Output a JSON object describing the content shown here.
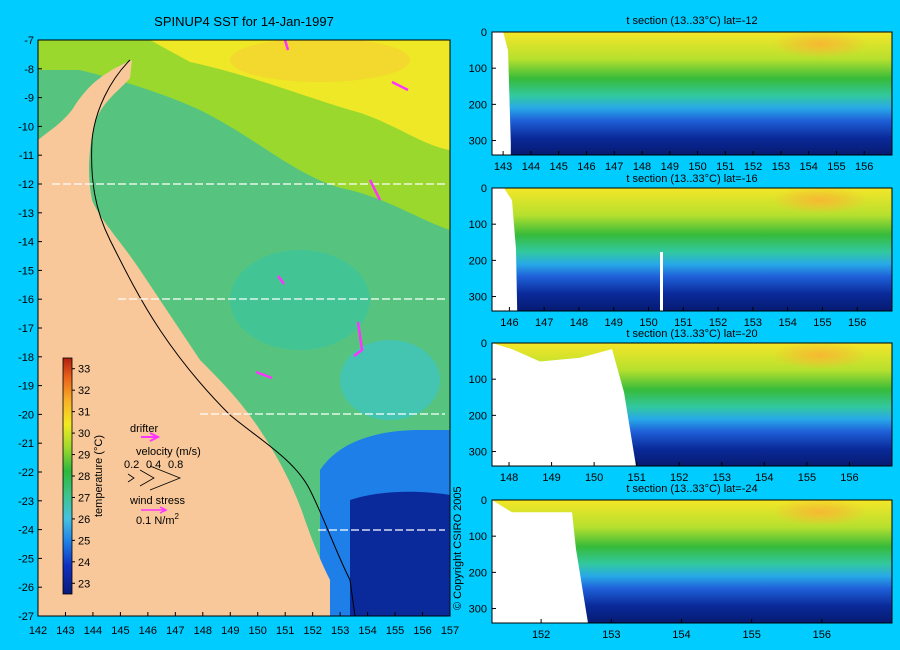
{
  "chart_data": [
    {
      "type": "heatmap",
      "title": "SPINUP4 SST for 14-Jan-1997",
      "x_ticks": [
        142,
        143,
        144,
        145,
        146,
        147,
        148,
        149,
        150,
        151,
        152,
        153,
        154,
        155,
        156,
        157
      ],
      "y_ticks": [
        -7,
        -8,
        -9,
        -10,
        -11,
        -12,
        -13,
        -14,
        -15,
        -16,
        -17,
        -18,
        -19,
        -20,
        -21,
        -22,
        -23,
        -24,
        -25,
        -26,
        -27
      ],
      "xlim": [
        142,
        157
      ],
      "ylim": [
        -27,
        -7
      ],
      "section_lats": [
        -12,
        -16,
        -20,
        -24
      ],
      "colorbar": {
        "label": "temperature (°C)",
        "ticks": [
          33,
          32,
          31,
          30,
          29,
          28,
          27,
          26,
          25,
          24,
          23
        ],
        "range": [
          22.5,
          33.5
        ]
      },
      "legend": {
        "drifter_label": "drifter",
        "velocity_label": "velocity (m/s)",
        "velocity_values": [
          "0.2",
          "0.4",
          "0.8"
        ],
        "wind_label": "wind stress",
        "wind_value": "0.1 N/m",
        "wind_exp": "2"
      },
      "copyright": "© Copyright CSIRO 2005"
    },
    {
      "type": "heatmap",
      "title": "t section (13..33°C) lat=-12",
      "x_ticks": [
        143,
        144,
        145,
        146,
        147,
        148,
        149,
        150,
        151,
        152,
        153,
        154,
        155,
        156
      ],
      "xlim": [
        142.6,
        157
      ],
      "y_ticks": [
        0,
        100,
        200,
        300
      ],
      "ylim": [
        0,
        340
      ]
    },
    {
      "type": "heatmap",
      "title": "t section (13..33°C) lat=-16",
      "x_ticks": [
        146,
        147,
        148,
        149,
        150,
        151,
        152,
        153,
        154,
        155,
        156
      ],
      "xlim": [
        145.5,
        157
      ],
      "y_ticks": [
        0,
        100,
        200,
        300
      ],
      "ylim": [
        0,
        340
      ]
    },
    {
      "type": "heatmap",
      "title": "t section (13..33°C) lat=-20",
      "x_ticks": [
        148,
        149,
        150,
        151,
        152,
        153,
        154,
        155,
        156
      ],
      "xlim": [
        147.6,
        157
      ],
      "y_ticks": [
        0,
        100,
        200,
        300
      ],
      "ylim": [
        0,
        340
      ]
    },
    {
      "type": "heatmap",
      "title": "t section (13..33°C) lat=-24",
      "x_ticks": [
        152,
        153,
        154,
        155,
        156
      ],
      "xlim": [
        151.3,
        157
      ],
      "y_ticks": [
        0,
        100,
        200,
        300
      ],
      "ylim": [
        0,
        340
      ]
    }
  ]
}
